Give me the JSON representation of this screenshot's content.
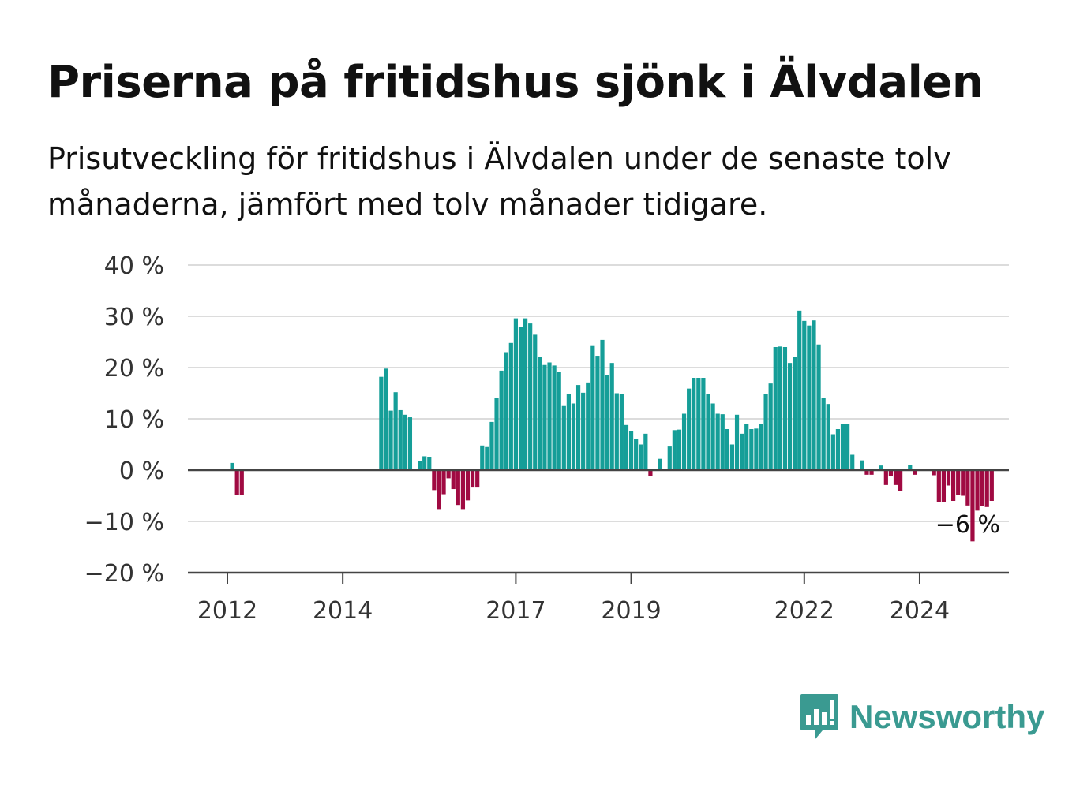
{
  "header": {
    "title": "Priserna på fritidshus sjönk i Älvdalen",
    "subtitle": "Prisutveckling för fritidshus i Älvdalen under de senaste tolv månaderna, jämfört med tolv månader tidigare."
  },
  "brand": {
    "name": "Newsworthy",
    "icon": "newsworthy-logo-icon",
    "color": "#3a9a91"
  },
  "colors": {
    "positive": "#159e98",
    "negative": "#a00a42",
    "grid": "#dcdcdc",
    "axis": "#444444"
  },
  "chart_data": {
    "type": "bar",
    "ylim": [
      -20,
      40
    ],
    "yticks": [
      40,
      30,
      20,
      10,
      0,
      -10,
      -20
    ],
    "ytick_labels": [
      "40 %",
      "30 %",
      "20 %",
      "10 %",
      "0 %",
      "−10 %",
      "−20 %"
    ],
    "xtick_labels": [
      "2012",
      "2014",
      "2017",
      "2019",
      "2022",
      "2024"
    ],
    "xtick_dates": [
      "2012-01",
      "2014-01",
      "2017-01",
      "2019-01",
      "2022-01",
      "2024-01"
    ],
    "grid": true,
    "annotation": {
      "text": "−6 %",
      "date": "2025-04"
    },
    "dates": [
      "2012-01",
      "2012-02",
      "2012-03",
      "2012-04",
      "2012-05",
      "2012-06",
      "2012-07",
      "2012-08",
      "2012-09",
      "2012-10",
      "2012-11",
      "2012-12",
      "2013-01",
      "2013-02",
      "2013-03",
      "2013-04",
      "2013-05",
      "2013-06",
      "2013-07",
      "2013-08",
      "2013-09",
      "2013-10",
      "2013-11",
      "2013-12",
      "2014-01",
      "2014-02",
      "2014-03",
      "2014-04",
      "2014-05",
      "2014-06",
      "2014-07",
      "2014-08",
      "2014-09",
      "2014-10",
      "2014-11",
      "2014-12",
      "2015-01",
      "2015-02",
      "2015-03",
      "2015-04",
      "2015-05",
      "2015-06",
      "2015-07",
      "2015-08",
      "2015-09",
      "2015-10",
      "2015-11",
      "2015-12",
      "2016-01",
      "2016-02",
      "2016-03",
      "2016-04",
      "2016-05",
      "2016-06",
      "2016-07",
      "2016-08",
      "2016-09",
      "2016-10",
      "2016-11",
      "2016-12",
      "2017-01",
      "2017-02",
      "2017-03",
      "2017-04",
      "2017-05",
      "2017-06",
      "2017-07",
      "2017-08",
      "2017-09",
      "2017-10",
      "2017-11",
      "2017-12",
      "2018-01",
      "2018-02",
      "2018-03",
      "2018-04",
      "2018-05",
      "2018-06",
      "2018-07",
      "2018-08",
      "2018-09",
      "2018-10",
      "2018-11",
      "2018-12",
      "2019-01",
      "2019-02",
      "2019-03",
      "2019-04",
      "2019-05",
      "2019-06",
      "2019-07",
      "2019-08",
      "2019-09",
      "2019-10",
      "2019-11",
      "2019-12",
      "2020-01",
      "2020-02",
      "2020-03",
      "2020-04",
      "2020-05",
      "2020-06",
      "2020-07",
      "2020-08",
      "2020-09",
      "2020-10",
      "2020-11",
      "2020-12",
      "2021-01",
      "2021-02",
      "2021-03",
      "2021-04",
      "2021-05",
      "2021-06",
      "2021-07",
      "2021-08",
      "2021-09",
      "2021-10",
      "2021-11",
      "2021-12",
      "2022-01",
      "2022-02",
      "2022-03",
      "2022-04",
      "2022-05",
      "2022-06",
      "2022-07",
      "2022-08",
      "2022-09",
      "2022-10",
      "2022-11",
      "2022-12",
      "2023-01",
      "2023-02",
      "2023-03",
      "2023-04",
      "2023-05",
      "2023-06",
      "2023-07",
      "2023-08",
      "2023-09",
      "2023-10",
      "2023-11",
      "2023-12",
      "2024-01",
      "2024-02",
      "2024-03",
      "2024-04",
      "2024-05",
      "2024-06",
      "2024-07",
      "2024-08",
      "2024-09",
      "2024-10",
      "2024-11",
      "2024-12",
      "2025-01",
      "2025-02",
      "2025-03",
      "2025-04"
    ],
    "values": [
      0,
      1.4,
      -4.8,
      -4.8,
      0,
      0,
      0,
      0,
      0,
      0,
      0,
      0,
      0,
      0,
      0,
      0,
      0,
      0,
      0,
      0,
      0,
      0,
      0,
      0,
      0,
      0,
      0,
      0,
      0,
      0,
      0,
      0,
      18.2,
      19.8,
      11.6,
      15.2,
      11.7,
      10.8,
      10.3,
      0,
      1.8,
      2.7,
      2.6,
      -3.9,
      -7.6,
      -4.7,
      -1.6,
      -3.7,
      -6.8,
      -7.6,
      -5.9,
      -3.4,
      -3.4,
      4.8,
      4.5,
      9.4,
      14,
      19.4,
      23,
      24.8,
      29.6,
      27.9,
      29.6,
      28.6,
      26.4,
      22.1,
      20.5,
      21,
      20.4,
      19.2,
      12.5,
      14.9,
      13,
      16.6,
      15.1,
      17.1,
      24.2,
      22.3,
      25.4,
      18.6,
      20.9,
      15,
      14.8,
      8.8,
      7.6,
      6,
      5,
      7.1,
      -1.1,
      0,
      2.2,
      0,
      4.6,
      7.8,
      7.9,
      11,
      15.9,
      18,
      18,
      18,
      14.9,
      13,
      11,
      10.9,
      8,
      5,
      10.8,
      7.1,
      9,
      8,
      8.1,
      9,
      14.9,
      16.9,
      24,
      24.1,
      24,
      20.9,
      22,
      31.1,
      29.1,
      28.2,
      29.2,
      24.5,
      14,
      12.9,
      7,
      8,
      9,
      9,
      3,
      0,
      1.9,
      -0.9,
      -0.9,
      0,
      0.9,
      -2.9,
      -1.2,
      -2.9,
      -4.1,
      0,
      1,
      -0.9,
      0,
      0,
      0,
      -1,
      -6.2,
      -6.2,
      -3,
      -6,
      -4.9,
      -5,
      -6.9,
      -13.9,
      -7.9,
      -7,
      -7.2,
      -6
    ]
  }
}
